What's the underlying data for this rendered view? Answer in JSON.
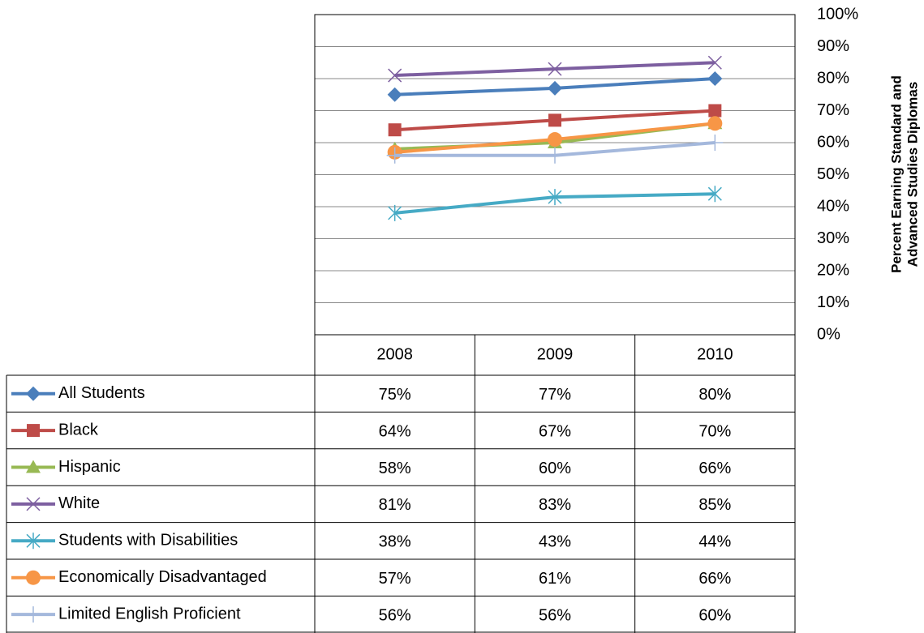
{
  "chart_data": {
    "type": "line",
    "categories": [
      "2008",
      "2009",
      "2010"
    ],
    "ylim": [
      0,
      100
    ],
    "yticks": [
      {
        "value": 0,
        "label": "0%"
      },
      {
        "value": 10,
        "label": "10%"
      },
      {
        "value": 20,
        "label": "20%"
      },
      {
        "value": 30,
        "label": "30%"
      },
      {
        "value": 40,
        "label": "40%"
      },
      {
        "value": 50,
        "label": "50%"
      },
      {
        "value": 60,
        "label": "60%"
      },
      {
        "value": 70,
        "label": "70%"
      },
      {
        "value": 80,
        "label": "80%"
      },
      {
        "value": 90,
        "label": "90%"
      },
      {
        "value": 100,
        "label": "100%"
      }
    ],
    "ylabel": [
      "Percent Earning Standard and",
      "Advanced Studies Diplomas"
    ],
    "grid": true,
    "series": [
      {
        "name": "All Students",
        "color": "#4a7ebb",
        "marker": "diamond",
        "values": [
          75,
          77,
          80
        ],
        "value_labels": [
          "75%",
          "77%",
          "80%"
        ]
      },
      {
        "name": "Black",
        "color": "#be4b48",
        "marker": "square",
        "values": [
          64,
          67,
          70
        ],
        "value_labels": [
          "64%",
          "67%",
          "70%"
        ]
      },
      {
        "name": "Hispanic",
        "color": "#98b954",
        "marker": "triangle",
        "values": [
          58,
          60,
          66
        ],
        "value_labels": [
          "58%",
          "60%",
          "66%"
        ]
      },
      {
        "name": "White",
        "color": "#7d5fa0",
        "marker": "x",
        "values": [
          81,
          83,
          85
        ],
        "value_labels": [
          "81%",
          "83%",
          "85%"
        ]
      },
      {
        "name": "Students with Disabilities",
        "color": "#46aac5",
        "marker": "star",
        "values": [
          38,
          43,
          44
        ],
        "value_labels": [
          "38%",
          "43%",
          "44%"
        ]
      },
      {
        "name": "Economically Disadvantaged",
        "color": "#f79646",
        "marker": "circle",
        "values": [
          57,
          61,
          66
        ],
        "value_labels": [
          "57%",
          "61%",
          "66%"
        ]
      },
      {
        "name": "Limited English Proficient",
        "color": "#a4b8dc",
        "marker": "plus",
        "values": [
          56,
          56,
          60
        ],
        "value_labels": [
          "56%",
          "56%",
          "60%"
        ]
      }
    ]
  }
}
